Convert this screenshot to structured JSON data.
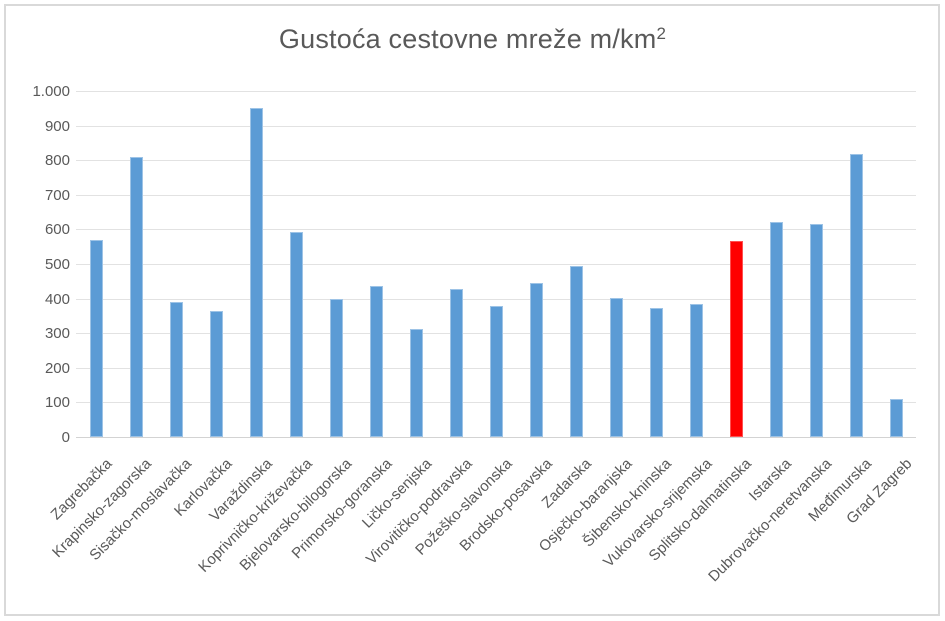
{
  "window": {
    "background": "#FFFFFF",
    "border_color": "#D9D9D9"
  },
  "chart_data": {
    "type": "bar",
    "title": "Gustoća cestovne mreže m/km",
    "title_superscript": "2",
    "categories": [
      "Zagrebačka",
      "Krapinsko-zagorska",
      "Sisačko-moslavačka",
      "Karlovačka",
      "Varaždinska",
      "Koprivničko-križevačka",
      "Bjelovarsko-bilogorska",
      "Primorsko-goranska",
      "Ličko-senjska",
      "Virovitičko-podravska",
      "Požeško-slavonska",
      "Brodsko-posavska",
      "Zadarska",
      "Osječko-baranjska",
      "Šibensko-kninska",
      "Vukovarsko-srijemska",
      "Splitsko-dalmatinska",
      "Istarska",
      "Dubrovačko-neretvanska",
      "Međimurska",
      "Grad Zagreb"
    ],
    "values": [
      570,
      810,
      390,
      365,
      950,
      592,
      400,
      435,
      312,
      427,
      378,
      446,
      495,
      403,
      372,
      383,
      567,
      622,
      617,
      818,
      110
    ],
    "highlighted_category": "Splitsko-dalmatinska",
    "highlight_index": 16,
    "bar_color": "#5B9BD5",
    "bar_edge_color": "#9DC3E6",
    "highlight_color": "#FF0000",
    "highlight_edge_color": "#FF5050",
    "xlabel": "",
    "ylabel": "",
    "ylim": [
      0,
      1000
    ],
    "ytick_step": 100,
    "ytick_labels": [
      "0",
      "100",
      "200",
      "300",
      "400",
      "500",
      "600",
      "700",
      "800",
      "900",
      "1.000"
    ],
    "grid": true,
    "gridline_color": "#E2E2E2",
    "axis_line_color": "#D3D3D3",
    "axis_text_color": "#595959",
    "title_color": "#595959",
    "legend": "none"
  }
}
